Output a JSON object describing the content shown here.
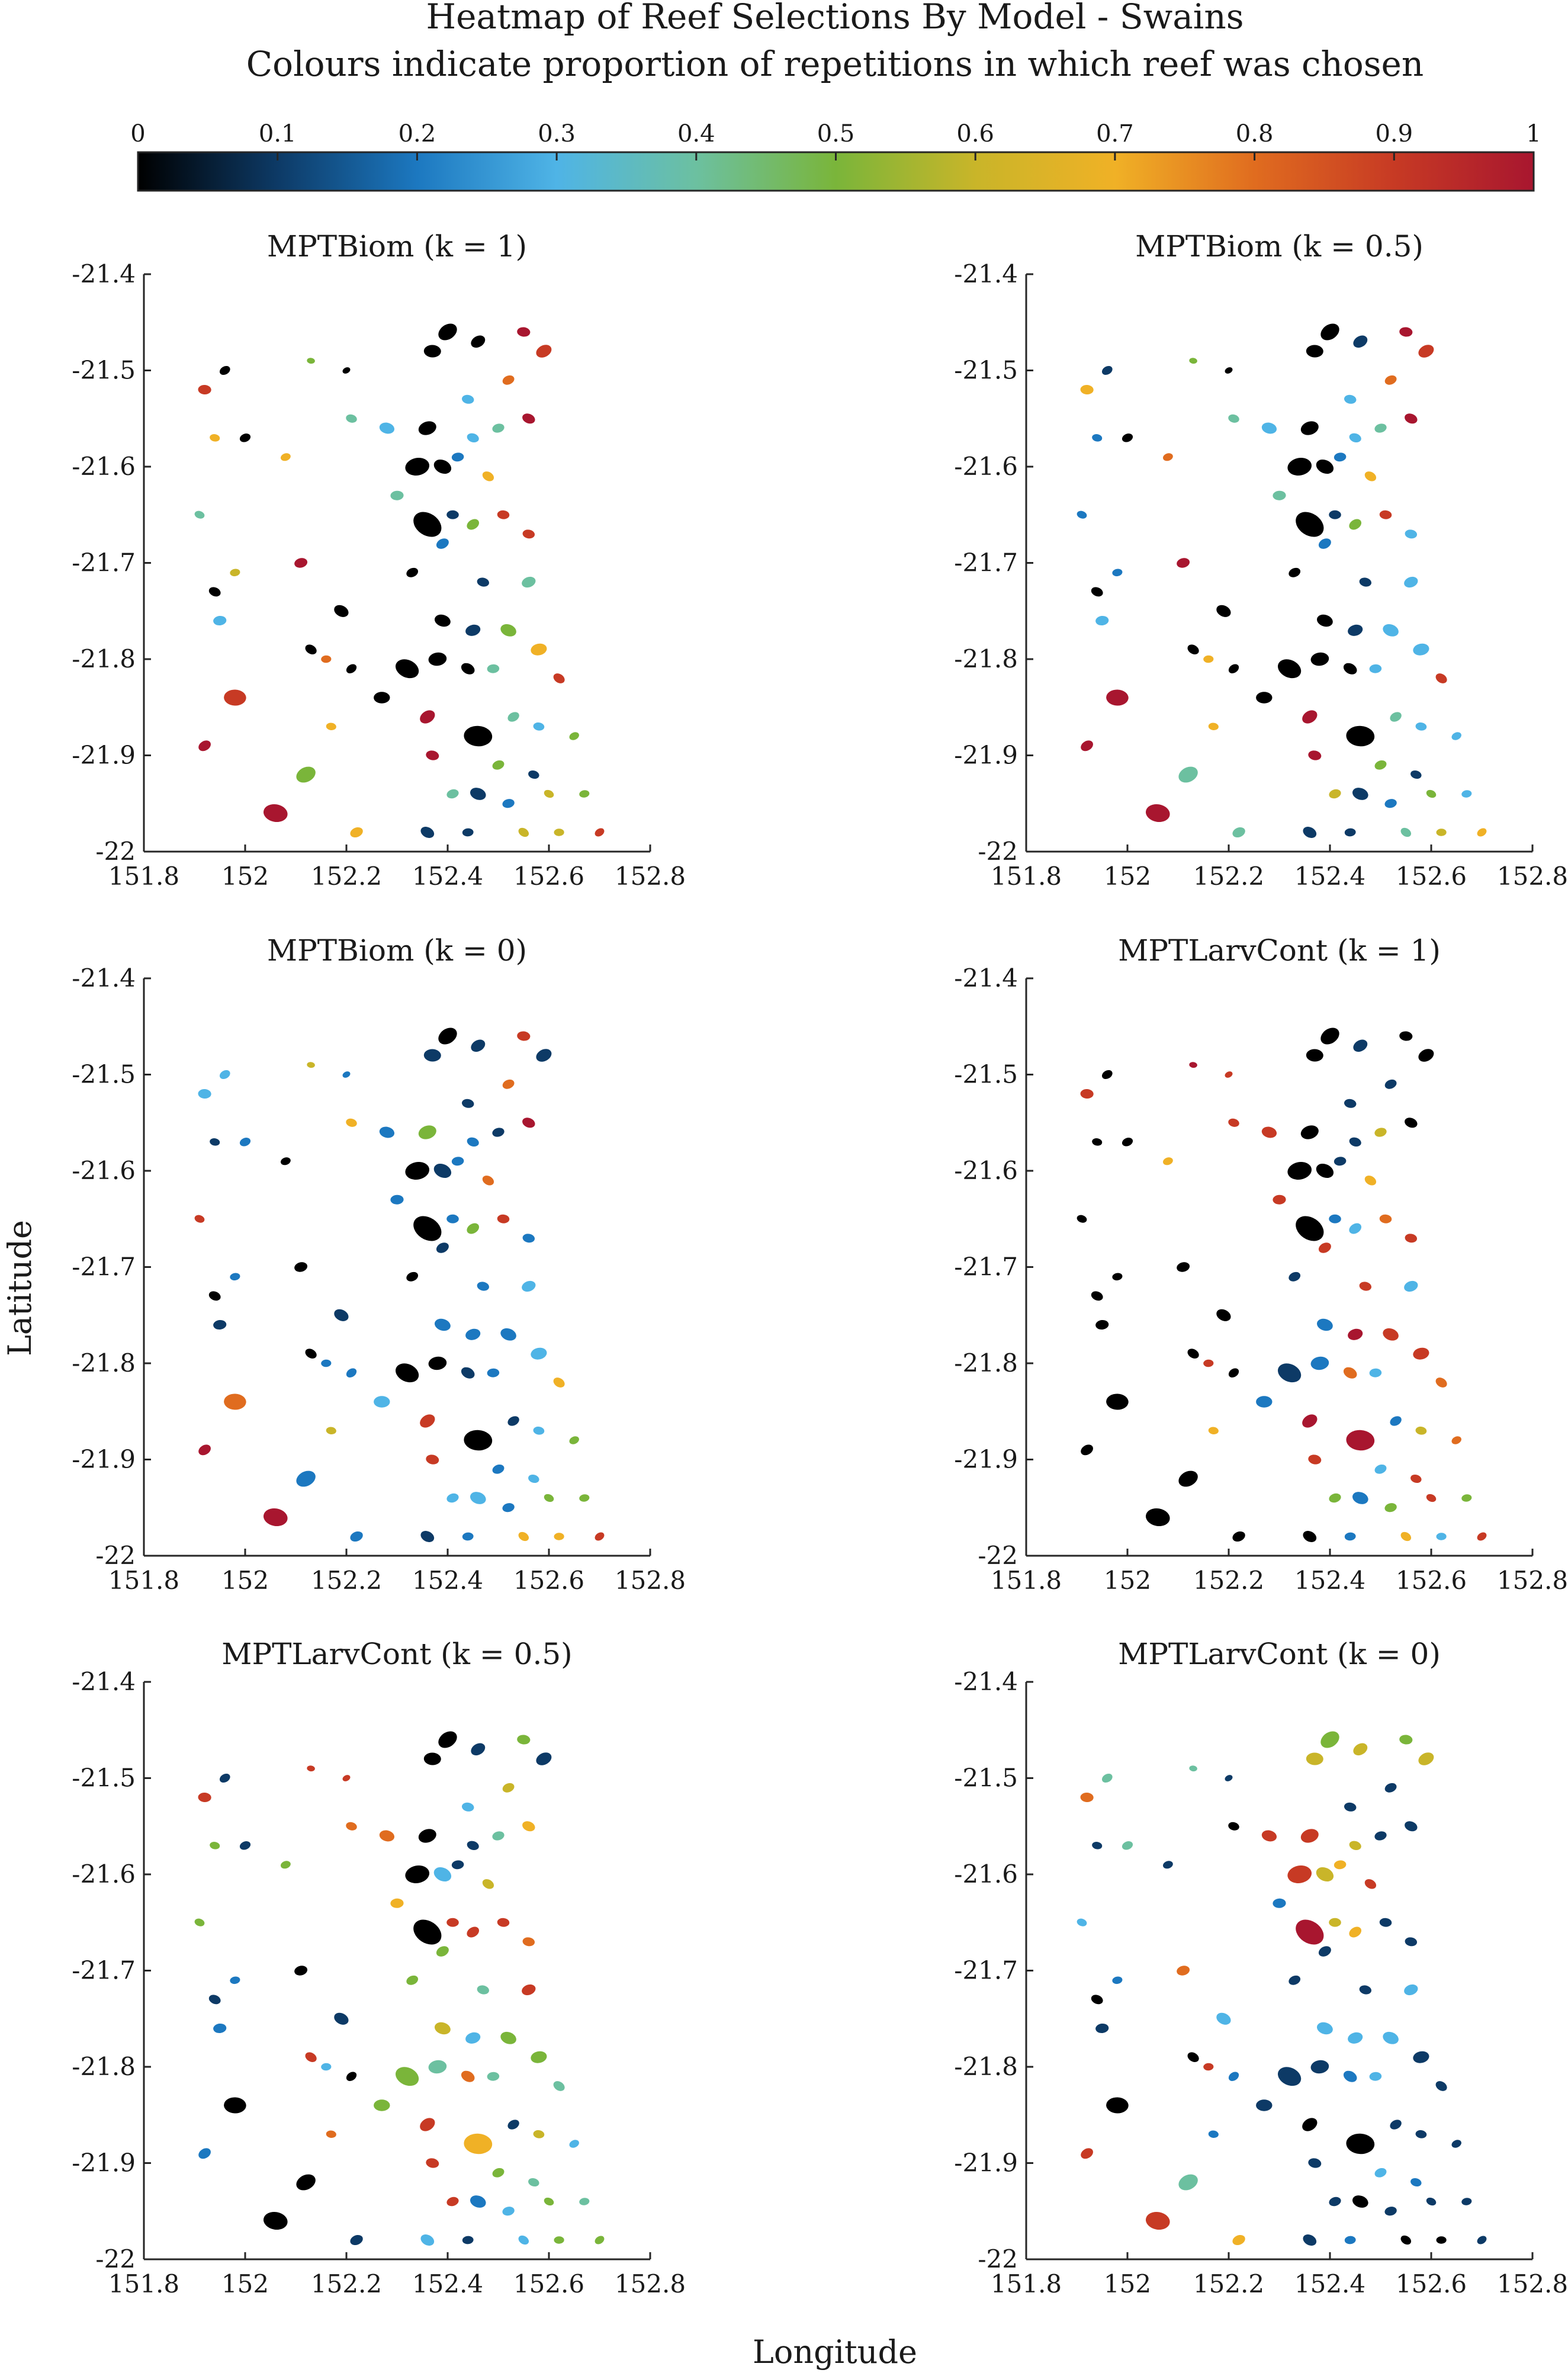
{
  "figure": {
    "title": "Heatmap of Reef Selections By Model - Swains",
    "subtitle": "Colours indicate proportion of repetitions in which reef was chosen",
    "xlabel": "Longitude",
    "ylabel": "Latitude"
  },
  "colorbar": {
    "ticks": [
      "0",
      "0.1",
      "0.2",
      "0.3",
      "0.4",
      "0.5",
      "0.6",
      "0.7",
      "0.8",
      "0.9",
      "1"
    ],
    "range": [
      0,
      1
    ],
    "stops": [
      {
        "v": 0.0,
        "c": "#000000"
      },
      {
        "v": 0.1,
        "c": "#0d3a66"
      },
      {
        "v": 0.2,
        "c": "#1c78c0"
      },
      {
        "v": 0.3,
        "c": "#4fb4e6"
      },
      {
        "v": 0.4,
        "c": "#6cc0a0"
      },
      {
        "v": 0.5,
        "c": "#7ab53a"
      },
      {
        "v": 0.6,
        "c": "#c9b529"
      },
      {
        "v": 0.7,
        "c": "#f0b126"
      },
      {
        "v": 0.8,
        "c": "#e06c1f"
      },
      {
        "v": 0.9,
        "c": "#c73a24"
      },
      {
        "v": 1.0,
        "c": "#a8162f"
      }
    ]
  },
  "chart_data": {
    "type": "heatmap",
    "xlim": [
      151.8,
      152.8
    ],
    "ylim": [
      -22,
      -21.4
    ],
    "xticks": [
      "151.8",
      "152",
      "152.2",
      "152.4",
      "152.6",
      "152.8"
    ],
    "yticks": [
      "-22",
      "-21.9",
      "-21.8",
      "-21.7",
      "-21.6",
      "-21.5",
      "-21.4"
    ],
    "reefs": [
      {
        "lon": 152.4,
        "lat": -21.46,
        "size": 0.02
      },
      {
        "lon": 152.37,
        "lat": -21.48,
        "size": 0.017
      },
      {
        "lon": 152.46,
        "lat": -21.47,
        "size": 0.015
      },
      {
        "lon": 152.55,
        "lat": -21.46,
        "size": 0.013
      },
      {
        "lon": 152.59,
        "lat": -21.48,
        "size": 0.016
      },
      {
        "lon": 152.44,
        "lat": -21.53,
        "size": 0.012
      },
      {
        "lon": 152.52,
        "lat": -21.51,
        "size": 0.012
      },
      {
        "lon": 152.28,
        "lat": -21.56,
        "size": 0.015
      },
      {
        "lon": 152.36,
        "lat": -21.56,
        "size": 0.018
      },
      {
        "lon": 152.45,
        "lat": -21.57,
        "size": 0.012
      },
      {
        "lon": 152.5,
        "lat": -21.56,
        "size": 0.012
      },
      {
        "lon": 152.56,
        "lat": -21.55,
        "size": 0.013
      },
      {
        "lon": 152.34,
        "lat": -21.6,
        "size": 0.024
      },
      {
        "lon": 152.39,
        "lat": -21.6,
        "size": 0.018
      },
      {
        "lon": 152.42,
        "lat": -21.59,
        "size": 0.012
      },
      {
        "lon": 152.48,
        "lat": -21.61,
        "size": 0.012
      },
      {
        "lon": 152.3,
        "lat": -21.63,
        "size": 0.013
      },
      {
        "lon": 152.36,
        "lat": -21.66,
        "size": 0.03
      },
      {
        "lon": 152.41,
        "lat": -21.65,
        "size": 0.012
      },
      {
        "lon": 152.45,
        "lat": -21.66,
        "size": 0.013
      },
      {
        "lon": 152.51,
        "lat": -21.65,
        "size": 0.012
      },
      {
        "lon": 152.39,
        "lat": -21.68,
        "size": 0.013
      },
      {
        "lon": 152.56,
        "lat": -21.67,
        "size": 0.012
      },
      {
        "lon": 152.33,
        "lat": -21.71,
        "size": 0.012
      },
      {
        "lon": 152.47,
        "lat": -21.72,
        "size": 0.012
      },
      {
        "lon": 152.56,
        "lat": -21.72,
        "size": 0.014
      },
      {
        "lon": 152.39,
        "lat": -21.76,
        "size": 0.016
      },
      {
        "lon": 152.45,
        "lat": -21.77,
        "size": 0.015
      },
      {
        "lon": 152.52,
        "lat": -21.77,
        "size": 0.016
      },
      {
        "lon": 152.58,
        "lat": -21.79,
        "size": 0.016
      },
      {
        "lon": 152.32,
        "lat": -21.81,
        "size": 0.024
      },
      {
        "lon": 152.38,
        "lat": -21.8,
        "size": 0.018
      },
      {
        "lon": 152.44,
        "lat": -21.81,
        "size": 0.014
      },
      {
        "lon": 152.49,
        "lat": -21.81,
        "size": 0.012
      },
      {
        "lon": 152.62,
        "lat": -21.82,
        "size": 0.012
      },
      {
        "lon": 152.27,
        "lat": -21.84,
        "size": 0.016
      },
      {
        "lon": 152.36,
        "lat": -21.86,
        "size": 0.016
      },
      {
        "lon": 152.46,
        "lat": -21.88,
        "size": 0.028
      },
      {
        "lon": 152.53,
        "lat": -21.86,
        "size": 0.012
      },
      {
        "lon": 152.58,
        "lat": -21.87,
        "size": 0.011
      },
      {
        "lon": 152.65,
        "lat": -21.88,
        "size": 0.01
      },
      {
        "lon": 152.37,
        "lat": -21.9,
        "size": 0.013
      },
      {
        "lon": 152.5,
        "lat": -21.91,
        "size": 0.012
      },
      {
        "lon": 152.57,
        "lat": -21.92,
        "size": 0.011
      },
      {
        "lon": 152.41,
        "lat": -21.94,
        "size": 0.012
      },
      {
        "lon": 152.46,
        "lat": -21.94,
        "size": 0.016
      },
      {
        "lon": 152.52,
        "lat": -21.95,
        "size": 0.012
      },
      {
        "lon": 152.6,
        "lat": -21.94,
        "size": 0.01
      },
      {
        "lon": 152.67,
        "lat": -21.94,
        "size": 0.01
      },
      {
        "lon": 152.36,
        "lat": -21.98,
        "size": 0.014
      },
      {
        "lon": 152.44,
        "lat": -21.98,
        "size": 0.011
      },
      {
        "lon": 152.55,
        "lat": -21.98,
        "size": 0.011
      },
      {
        "lon": 152.62,
        "lat": -21.98,
        "size": 0.01
      },
      {
        "lon": 152.7,
        "lat": -21.98,
        "size": 0.01
      },
      {
        "lon": 151.92,
        "lat": -21.52,
        "size": 0.013
      },
      {
        "lon": 151.96,
        "lat": -21.5,
        "size": 0.011
      },
      {
        "lon": 152.13,
        "lat": -21.49,
        "size": 0.008
      },
      {
        "lon": 152.2,
        "lat": -21.5,
        "size": 0.008
      },
      {
        "lon": 151.94,
        "lat": -21.57,
        "size": 0.01
      },
      {
        "lon": 152.0,
        "lat": -21.57,
        "size": 0.011
      },
      {
        "lon": 152.21,
        "lat": -21.55,
        "size": 0.011
      },
      {
        "lon": 152.08,
        "lat": -21.59,
        "size": 0.01
      },
      {
        "lon": 151.91,
        "lat": -21.65,
        "size": 0.01
      },
      {
        "lon": 152.11,
        "lat": -21.7,
        "size": 0.013
      },
      {
        "lon": 151.94,
        "lat": -21.73,
        "size": 0.012
      },
      {
        "lon": 151.98,
        "lat": -21.71,
        "size": 0.01
      },
      {
        "lon": 152.19,
        "lat": -21.75,
        "size": 0.015
      },
      {
        "lon": 151.95,
        "lat": -21.76,
        "size": 0.013
      },
      {
        "lon": 152.13,
        "lat": -21.79,
        "size": 0.012
      },
      {
        "lon": 152.16,
        "lat": -21.8,
        "size": 0.01
      },
      {
        "lon": 152.21,
        "lat": -21.81,
        "size": 0.011
      },
      {
        "lon": 151.98,
        "lat": -21.84,
        "size": 0.022
      },
      {
        "lon": 151.92,
        "lat": -21.89,
        "size": 0.013
      },
      {
        "lon": 152.17,
        "lat": -21.87,
        "size": 0.01
      },
      {
        "lon": 152.12,
        "lat": -21.92,
        "size": 0.02
      },
      {
        "lon": 152.06,
        "lat": -21.96,
        "size": 0.024
      },
      {
        "lon": 152.22,
        "lat": -21.98,
        "size": 0.013
      }
    ],
    "panels": [
      {
        "title": "MPTBiom (k = 1)",
        "values": [
          0,
          0,
          0,
          1,
          0.9,
          0.3,
          0.8,
          0.3,
          0,
          0.3,
          0.4,
          1,
          0,
          0,
          0.2,
          0.7,
          0.4,
          0,
          0.1,
          0.5,
          0.9,
          0.2,
          0.9,
          0,
          0.1,
          0.4,
          0,
          0.1,
          0.5,
          0.7,
          0,
          0,
          0,
          0.4,
          0.9,
          0,
          1,
          0,
          0.4,
          0.3,
          0.5,
          1,
          0.5,
          0.1,
          0.4,
          0.1,
          0.2,
          0.6,
          0.5,
          0.1,
          0.1,
          0.6,
          0.6,
          0.9,
          0.9,
          0,
          0.5,
          0,
          0.7,
          0,
          0.4,
          0.7,
          0.4,
          1,
          0,
          0.6,
          0,
          0.3,
          0,
          0.8,
          0,
          0.9,
          1,
          0.7,
          0.5,
          1,
          0.7
        ]
      },
      {
        "title": "MPTBiom (k = 0.5)",
        "values": [
          0,
          0,
          0.1,
          1,
          0.9,
          0.3,
          0.8,
          0.3,
          0,
          0.3,
          0.4,
          1,
          0,
          0,
          0.2,
          0.7,
          0.4,
          0,
          0.1,
          0.5,
          0.9,
          0.2,
          0.3,
          0,
          0.1,
          0.3,
          0,
          0.1,
          0.3,
          0.3,
          0,
          0,
          0,
          0.3,
          0.9,
          0,
          1,
          0,
          0.4,
          0.3,
          0.3,
          1,
          0.5,
          0.1,
          0.6,
          0.1,
          0.2,
          0.5,
          0.3,
          0.1,
          0.1,
          0.4,
          0.6,
          0.7,
          0.7,
          0.1,
          0.5,
          0,
          0.2,
          0,
          0.4,
          0.8,
          0.2,
          1,
          0,
          0.2,
          0,
          0.3,
          0,
          0.7,
          0,
          1,
          1,
          0.7,
          0.4,
          1,
          0.4
        ]
      },
      {
        "title": "MPTBiom (k = 0)",
        "values": [
          0,
          0.1,
          0.1,
          0.9,
          0.1,
          0.1,
          0.8,
          0.2,
          0.5,
          0.2,
          0.1,
          1,
          0,
          0.1,
          0.2,
          0.8,
          0.2,
          0,
          0.2,
          0.5,
          0.9,
          0.1,
          0.2,
          0,
          0.2,
          0.3,
          0.2,
          0.2,
          0.2,
          0.3,
          0,
          0,
          0.1,
          0.2,
          0.7,
          0.3,
          0.9,
          0,
          0.1,
          0.3,
          0.5,
          0.9,
          0.2,
          0.3,
          0.3,
          0.3,
          0.2,
          0.5,
          0.5,
          0.1,
          0.2,
          0.7,
          0.7,
          0.9,
          0.3,
          0.3,
          0.6,
          0.2,
          0.1,
          0.2,
          0.7,
          0,
          0.9,
          0,
          0,
          0.2,
          0.1,
          0.1,
          0,
          0.2,
          0.2,
          0.8,
          1,
          0.6,
          0.2,
          1,
          0.2
        ]
      },
      {
        "title": "MPTLarvCont (k = 1)",
        "values": [
          0,
          0,
          0.1,
          0,
          0,
          0.1,
          0.1,
          0.9,
          0,
          0.1,
          0.6,
          0,
          0,
          0,
          0.1,
          0.7,
          0.9,
          0,
          0.2,
          0.3,
          0.8,
          0.9,
          0.9,
          0.1,
          0.9,
          0.3,
          0.2,
          1,
          0.9,
          0.9,
          0.1,
          0.2,
          0.8,
          0.3,
          0.8,
          0.2,
          1,
          1,
          0.2,
          0.6,
          0.8,
          0.9,
          0.3,
          0.9,
          0.5,
          0.2,
          0.5,
          0.9,
          0.5,
          0,
          0.2,
          0.7,
          0.3,
          0.9,
          0.9,
          0,
          1,
          0.9,
          0,
          0,
          0.9,
          0.7,
          0,
          0,
          0,
          0,
          0,
          0,
          0,
          0.9,
          0,
          0,
          0,
          0.7,
          0,
          0,
          0
        ]
      },
      {
        "title": "MPTLarvCont (k = 0.5)",
        "values": [
          0,
          0,
          0.1,
          0.5,
          0.1,
          0.3,
          0.6,
          0.8,
          0,
          0.1,
          0.4,
          0.7,
          0,
          0.3,
          0.1,
          0.6,
          0.7,
          0,
          0.9,
          0.9,
          0.9,
          0.5,
          0.8,
          0.5,
          0.4,
          0.9,
          0.6,
          0.3,
          0.5,
          0.5,
          0.5,
          0.4,
          0.8,
          0.4,
          0.4,
          0.5,
          0.9,
          0.7,
          0.1,
          0.6,
          0.3,
          0.9,
          0.5,
          0.4,
          0.9,
          0.2,
          0.3,
          0.5,
          0.4,
          0.3,
          0.1,
          0.3,
          0.5,
          0.5,
          0.9,
          0.1,
          0.9,
          0.9,
          0.5,
          0.1,
          0.8,
          0.5,
          0.5,
          0,
          0.1,
          0.2,
          0.1,
          0.2,
          0.9,
          0.3,
          0,
          0,
          0.2,
          0.8,
          0,
          0,
          0.1
        ]
      },
      {
        "title": "MPTLarvCont (k = 0)",
        "values": [
          0.5,
          0.6,
          0.6,
          0.5,
          0.6,
          0.1,
          0.1,
          0.9,
          0.9,
          0.6,
          0.1,
          0.1,
          0.9,
          0.6,
          0.7,
          0.9,
          0.2,
          1,
          0.6,
          0.7,
          0.1,
          0.1,
          0.1,
          0.1,
          0.1,
          0.3,
          0.3,
          0.3,
          0.3,
          0.1,
          0.1,
          0.1,
          0.2,
          0.3,
          0.1,
          0.1,
          0,
          0,
          0.1,
          0.1,
          0.1,
          0.1,
          0.3,
          0.2,
          0.1,
          0,
          0.1,
          0.1,
          0.1,
          0.1,
          0.2,
          0,
          0,
          0.1,
          0.8,
          0.4,
          0.4,
          0.1,
          0.1,
          0.4,
          0,
          0.1,
          0.3,
          0.8,
          0,
          0.2,
          0.3,
          0.1,
          0,
          0.9,
          0.2,
          0,
          0.9,
          0.2,
          0.4,
          0.9,
          0.7
        ]
      }
    ]
  }
}
